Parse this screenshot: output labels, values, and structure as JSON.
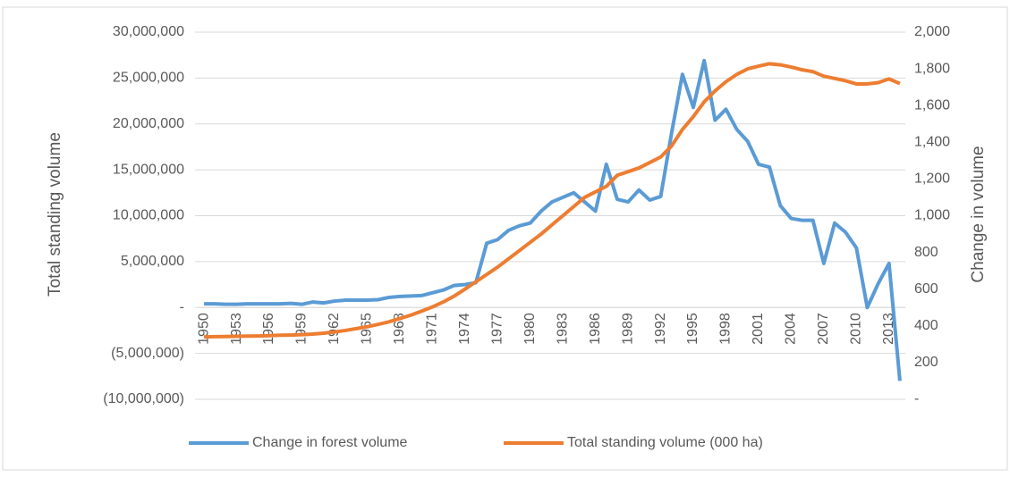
{
  "chart_data": {
    "type": "line",
    "y_label": "Total standing volume",
    "y2_label": "Change in volume",
    "x": [
      1950,
      1951,
      1952,
      1953,
      1954,
      1955,
      1956,
      1957,
      1958,
      1959,
      1960,
      1961,
      1962,
      1963,
      1964,
      1965,
      1966,
      1967,
      1968,
      1969,
      1970,
      1971,
      1972,
      1973,
      1974,
      1975,
      1976,
      1977,
      1978,
      1979,
      1980,
      1981,
      1982,
      1983,
      1984,
      1985,
      1986,
      1987,
      1988,
      1989,
      1990,
      1991,
      1992,
      1993,
      1994,
      1995,
      1996,
      1997,
      1998,
      1999,
      2000,
      2001,
      2002,
      2003,
      2004,
      2005,
      2006,
      2007,
      2008,
      2009,
      2010,
      2011,
      2012,
      2013,
      2014
    ],
    "xlim": [
      1949.5,
      2014.5
    ],
    "xticks": [
      1950,
      1953,
      1956,
      1959,
      1962,
      1965,
      1968,
      1971,
      1974,
      1977,
      1980,
      1983,
      1986,
      1989,
      1992,
      1995,
      1998,
      2001,
      2004,
      2007,
      2010,
      2013
    ],
    "ylim": [
      -10000000,
      30000000
    ],
    "yticks": [
      {
        "value": -10000000,
        "label": "(10,000,000)"
      },
      {
        "value": -5000000,
        "label": "(5,000,000)"
      },
      {
        "value": 0,
        "label": "-"
      },
      {
        "value": 5000000,
        "label": "5,000,000"
      },
      {
        "value": 10000000,
        "label": "10,000,000"
      },
      {
        "value": 15000000,
        "label": "15,000,000"
      },
      {
        "value": 20000000,
        "label": "20,000,000"
      },
      {
        "value": 25000000,
        "label": "25,000,000"
      },
      {
        "value": 30000000,
        "label": "30,000,000"
      }
    ],
    "y2lim": [
      0,
      2000
    ],
    "y2ticks": [
      {
        "value": 0,
        "label": "-"
      },
      200,
      400,
      600,
      800,
      {
        "value": 1000,
        "label": "1,000"
      },
      {
        "value": 1200,
        "label": "1,200"
      },
      {
        "value": 1400,
        "label": "1,400"
      },
      {
        "value": 1600,
        "label": "1,600"
      },
      {
        "value": 1800,
        "label": "1,800"
      },
      {
        "value": 2000,
        "label": "2,000"
      }
    ],
    "grid": true,
    "legend": "bottom",
    "series": [
      {
        "name": "Change in forest volume",
        "color": "#5b9bd5",
        "values": [
          400000,
          400000,
          350000,
          350000,
          400000,
          400000,
          400000,
          400000,
          450000,
          350000,
          600000,
          500000,
          700000,
          800000,
          800000,
          800000,
          850000,
          1100000,
          1200000,
          1250000,
          1300000,
          1600000,
          1900000,
          2400000,
          2500000,
          2700000,
          7000000,
          7400000,
          8400000,
          8900000,
          9200000,
          10500000,
          11500000,
          12000000,
          12500000,
          11500000,
          10500000,
          15600000,
          11800000,
          11500000,
          12800000,
          11700000,
          12100000,
          19000000,
          25400000,
          21800000,
          26900000,
          20400000,
          21600000,
          19400000,
          18100000,
          15600000,
          15300000,
          11100000,
          9700000,
          9500000,
          9500000,
          4800000,
          9200000,
          8200000,
          6500000,
          0,
          2600000,
          4800000,
          -8000000
        ]
      },
      {
        "name": "Total standing volume (000 ha)",
        "color": "#ed7d31",
        "axis": "y2",
        "values": [
          340,
          341,
          342,
          343,
          344,
          345,
          347,
          349,
          350,
          352,
          355,
          360,
          367,
          375,
          385,
          395,
          408,
          422,
          440,
          458,
          480,
          503,
          530,
          562,
          600,
          640,
          680,
          720,
          765,
          810,
          855,
          900,
          950,
          1000,
          1050,
          1100,
          1130,
          1160,
          1220,
          1240,
          1260,
          1290,
          1320,
          1380,
          1470,
          1540,
          1620,
          1680,
          1730,
          1770,
          1800,
          1815,
          1828,
          1822,
          1810,
          1795,
          1785,
          1760,
          1748,
          1735,
          1718,
          1718,
          1725,
          1745,
          1720
        ]
      }
    ]
  }
}
